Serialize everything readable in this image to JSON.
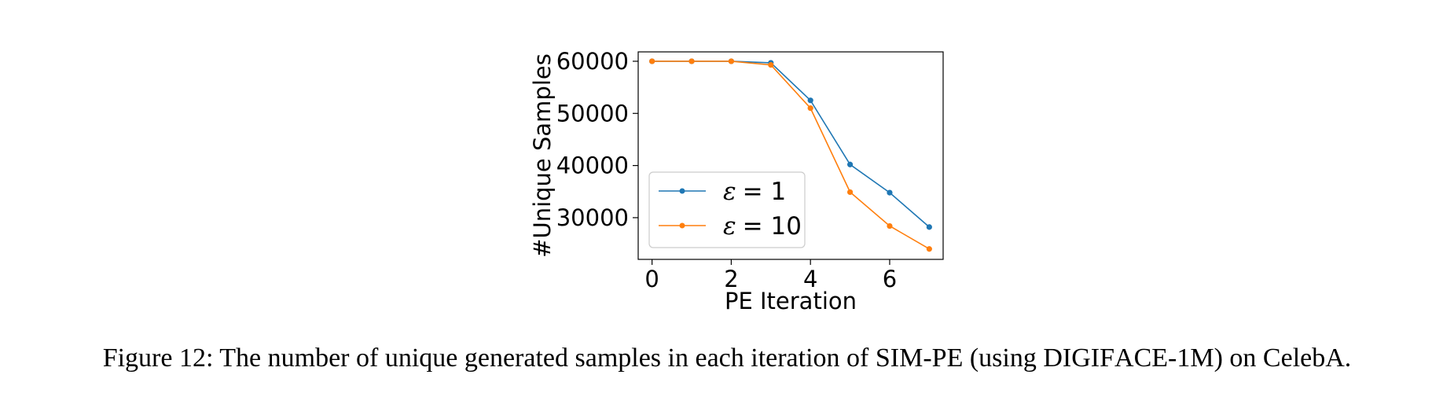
{
  "chart_data": {
    "type": "line",
    "xlabel": "PE Iteration",
    "ylabel": "#Unique Samples",
    "x": [
      0,
      1,
      2,
      3,
      4,
      5,
      6,
      7
    ],
    "xlim": [
      -0.35,
      7.35
    ],
    "ylim": [
      22000,
      61800
    ],
    "x_ticks": [
      0,
      2,
      4,
      6
    ],
    "y_ticks": [
      30000,
      40000,
      50000,
      60000
    ],
    "grid": false,
    "legend_position": "lower-left",
    "series": [
      {
        "name": "ε = 1",
        "eps_symbol": "ε",
        "eps_value": "= 1",
        "color": "#1f77b4",
        "values": [
          60000,
          60000,
          60000,
          59700,
          52500,
          40200,
          34800,
          28200
        ]
      },
      {
        "name": "ε = 10",
        "eps_symbol": "ε",
        "eps_value": "= 10",
        "color": "#ff7f0e",
        "values": [
          60000,
          60000,
          60000,
          59300,
          51000,
          34900,
          28400,
          24000
        ]
      }
    ]
  },
  "caption": {
    "prefix": "Figure 12: The number of unique generated samples in each iteration of ",
    "method_first": "S",
    "method_rest": "IM",
    "method_suffix": "-PE (using ",
    "dataset_first": "D",
    "dataset_mid1": "IGI",
    "dataset_mid2": "F",
    "dataset_rest": "ACE",
    "dataset_suffix": "-1M",
    "suffix": ") on CelebA."
  }
}
